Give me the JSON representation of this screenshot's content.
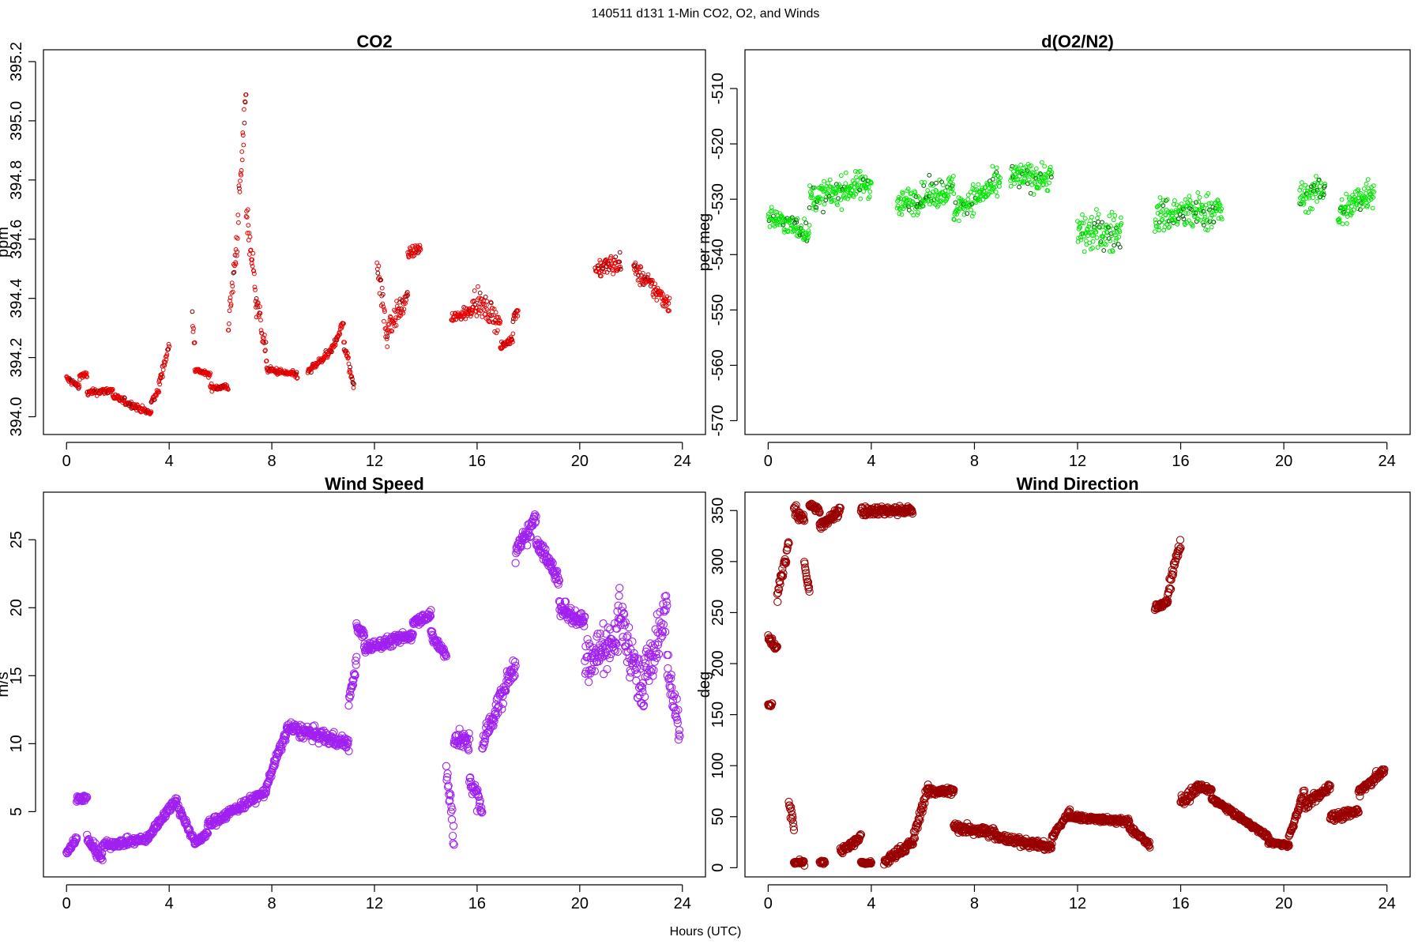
{
  "figure": {
    "title": "140511   d131   1-Min CO2, O2, and Winds",
    "xlabel": "Hours (UTC)"
  },
  "chart_data": [
    {
      "type": "scatter",
      "title": "CO2",
      "ylabel": "ppm",
      "xlim": [
        -0.9,
        24.9
      ],
      "ylim": [
        393.94,
        395.24
      ],
      "xticks": [
        0,
        4,
        8,
        12,
        16,
        20,
        24
      ],
      "yticks": [
        394.0,
        394.2,
        394.4,
        394.6,
        394.8,
        395.0,
        395.2
      ],
      "ytick_format": 1,
      "color": "#e60000",
      "highlight_color": "#7a0000",
      "marker_size": "small",
      "series_segments": [
        {
          "x0": 0.0,
          "x1": 0.5,
          "y0": 394.13,
          "y1": 394.1,
          "noise": 0.02
        },
        {
          "x0": 0.5,
          "x1": 0.8,
          "y0": 394.14,
          "y1": 394.14,
          "noise": 0.02
        },
        {
          "x0": 0.8,
          "x1": 1.8,
          "y0": 394.08,
          "y1": 394.09,
          "noise": 0.02
        },
        {
          "x0": 1.8,
          "x1": 3.3,
          "y0": 394.07,
          "y1": 394.01,
          "noise": 0.02
        },
        {
          "x0": 3.3,
          "x1": 3.6,
          "y0": 394.05,
          "y1": 394.09,
          "noise": 0.02
        },
        {
          "x0": 3.6,
          "x1": 4.0,
          "y0": 394.11,
          "y1": 394.24,
          "noise": 0.03
        },
        {
          "x0": 4.9,
          "x1": 5.0,
          "y0": 394.35,
          "y1": 394.25,
          "noise": 0.06
        },
        {
          "x0": 5.0,
          "x1": 5.6,
          "y0": 394.16,
          "y1": 394.14,
          "noise": 0.015
        },
        {
          "x0": 5.6,
          "x1": 6.3,
          "y0": 394.1,
          "y1": 394.1,
          "noise": 0.02
        },
        {
          "x0": 6.3,
          "x1": 6.6,
          "y0": 394.3,
          "y1": 394.55,
          "noise": 0.08
        },
        {
          "x0": 6.6,
          "x1": 7.0,
          "y0": 394.55,
          "y1": 395.1,
          "noise": 0.12
        },
        {
          "x0": 7.0,
          "x1": 7.4,
          "y0": 394.7,
          "y1": 394.4,
          "noise": 0.1
        },
        {
          "x0": 7.4,
          "x1": 7.8,
          "y0": 394.4,
          "y1": 394.2,
          "noise": 0.06
        },
        {
          "x0": 7.8,
          "x1": 9.0,
          "y0": 394.16,
          "y1": 394.14,
          "noise": 0.02
        },
        {
          "x0": 9.4,
          "x1": 10.3,
          "y0": 394.15,
          "y1": 394.22,
          "noise": 0.025
        },
        {
          "x0": 10.3,
          "x1": 10.8,
          "y0": 394.22,
          "y1": 394.32,
          "noise": 0.025
        },
        {
          "x0": 10.8,
          "x1": 11.2,
          "y0": 394.25,
          "y1": 394.1,
          "noise": 0.04
        },
        {
          "x0": 12.1,
          "x1": 12.5,
          "y0": 394.55,
          "y1": 394.25,
          "noise": 0.12
        },
        {
          "x0": 12.5,
          "x1": 13.3,
          "y0": 394.3,
          "y1": 394.4,
          "noise": 0.07
        },
        {
          "x0": 13.3,
          "x1": 13.8,
          "y0": 394.55,
          "y1": 394.57,
          "noise": 0.03
        },
        {
          "x0": 15.0,
          "x1": 15.8,
          "y0": 394.33,
          "y1": 394.36,
          "noise": 0.04
        },
        {
          "x0": 15.8,
          "x1": 16.9,
          "y0": 394.4,
          "y1": 394.32,
          "noise": 0.07
        },
        {
          "x0": 16.9,
          "x1": 17.4,
          "y0": 394.23,
          "y1": 394.27,
          "noise": 0.025
        },
        {
          "x0": 17.4,
          "x1": 17.6,
          "y0": 394.33,
          "y1": 394.36,
          "noise": 0.03
        },
        {
          "x0": 20.6,
          "x1": 21.6,
          "y0": 394.5,
          "y1": 394.52,
          "noise": 0.06
        },
        {
          "x0": 22.1,
          "x1": 23.5,
          "y0": 394.5,
          "y1": 394.38,
          "noise": 0.06
        }
      ]
    },
    {
      "type": "scatter",
      "title": "d(O2/N2)",
      "ylabel": "per meg",
      "xlim": [
        -0.9,
        24.9
      ],
      "ylim": [
        -572.5,
        -503
      ],
      "xticks": [
        0,
        4,
        8,
        12,
        16,
        20,
        24
      ],
      "yticks": [
        -570,
        -560,
        -550,
        -540,
        -530,
        -520,
        -510
      ],
      "ytick_format": 0,
      "color": "#00e600",
      "highlight_color": "#005500",
      "marker_size": "small",
      "series_segments": [
        {
          "x0": 0.0,
          "x1": 1.6,
          "y0": -533,
          "y1": -536,
          "noise": 3.5
        },
        {
          "x0": 1.6,
          "x1": 4.0,
          "y0": -530,
          "y1": -527,
          "noise": 4.5
        },
        {
          "x0": 5.0,
          "x1": 7.2,
          "y0": -531,
          "y1": -528,
          "noise": 4.5
        },
        {
          "x0": 7.2,
          "x1": 9.0,
          "y0": -532,
          "y1": -527,
          "noise": 4.5
        },
        {
          "x0": 9.4,
          "x1": 11.0,
          "y0": -526,
          "y1": -526,
          "noise": 4.5
        },
        {
          "x0": 12.0,
          "x1": 13.7,
          "y0": -536,
          "y1": -536,
          "noise": 6.5
        },
        {
          "x0": 15.0,
          "x1": 17.6,
          "y0": -533,
          "y1": -532,
          "noise": 6
        },
        {
          "x0": 20.6,
          "x1": 21.6,
          "y0": -530,
          "y1": -528,
          "noise": 4.5
        },
        {
          "x0": 22.1,
          "x1": 23.5,
          "y0": -533,
          "y1": -528,
          "noise": 5.5
        }
      ]
    },
    {
      "type": "scatter",
      "title": "Wind Speed",
      "ylabel": "m/s",
      "xlim": [
        -0.9,
        24.9
      ],
      "ylim": [
        0.2,
        28.5
      ],
      "xticks": [
        0,
        4,
        8,
        12,
        16,
        20,
        24
      ],
      "yticks": [
        5,
        10,
        15,
        20,
        25
      ],
      "ytick_format": 0,
      "color": "#a020f0",
      "highlight_color": "#a020f0",
      "marker_size": "large",
      "series_segments": [
        {
          "x0": 0.0,
          "x1": 0.4,
          "y0": 2.0,
          "y1": 3.0,
          "noise": 0.5
        },
        {
          "x0": 0.4,
          "x1": 0.8,
          "y0": 6.0,
          "y1": 6.0,
          "noise": 0.4
        },
        {
          "x0": 0.8,
          "x1": 1.4,
          "y0": 3.0,
          "y1": 1.5,
          "noise": 0.7
        },
        {
          "x0": 1.4,
          "x1": 3.2,
          "y0": 2.5,
          "y1": 3.0,
          "noise": 0.5
        },
        {
          "x0": 3.2,
          "x1": 4.3,
          "y0": 3.2,
          "y1": 6.0,
          "noise": 0.5
        },
        {
          "x0": 4.3,
          "x1": 5.0,
          "y0": 5.5,
          "y1": 2.8,
          "noise": 0.5
        },
        {
          "x0": 5.0,
          "x1": 5.5,
          "y0": 2.6,
          "y1": 3.5,
          "noise": 0.4
        },
        {
          "x0": 5.5,
          "x1": 7.8,
          "y0": 4.0,
          "y1": 6.5,
          "noise": 0.6
        },
        {
          "x0": 7.8,
          "x1": 8.6,
          "y0": 7.0,
          "y1": 11.0,
          "noise": 0.7
        },
        {
          "x0": 8.6,
          "x1": 11.0,
          "y0": 11.2,
          "y1": 10.0,
          "noise": 0.9
        },
        {
          "x0": 11.0,
          "x1": 11.3,
          "y0": 13.0,
          "y1": 16.0,
          "noise": 0.8
        },
        {
          "x0": 11.3,
          "x1": 11.6,
          "y0": 18.5,
          "y1": 18.0,
          "noise": 0.7
        },
        {
          "x0": 11.6,
          "x1": 13.5,
          "y0": 17.0,
          "y1": 18.0,
          "noise": 0.7
        },
        {
          "x0": 13.5,
          "x1": 14.2,
          "y0": 19.0,
          "y1": 19.5,
          "noise": 0.6
        },
        {
          "x0": 14.2,
          "x1": 14.8,
          "y0": 18.0,
          "y1": 16.5,
          "noise": 0.8
        },
        {
          "x0": 14.8,
          "x1": 15.1,
          "y0": 8.0,
          "y1": 3.0,
          "noise": 2.5
        },
        {
          "x0": 15.1,
          "x1": 15.7,
          "y0": 10.5,
          "y1": 10.0,
          "noise": 1.2
        },
        {
          "x0": 15.7,
          "x1": 16.2,
          "y0": 7.5,
          "y1": 5.0,
          "noise": 1.5
        },
        {
          "x0": 16.2,
          "x1": 17.5,
          "y0": 10.0,
          "y1": 16.0,
          "noise": 1.5
        },
        {
          "x0": 17.5,
          "x1": 18.3,
          "y0": 24.0,
          "y1": 26.5,
          "noise": 1.2
        },
        {
          "x0": 18.3,
          "x1": 19.2,
          "y0": 25.0,
          "y1": 22.0,
          "noise": 1.0
        },
        {
          "x0": 19.2,
          "x1": 20.2,
          "y0": 20.0,
          "y1": 19.0,
          "noise": 1.3
        },
        {
          "x0": 20.2,
          "x1": 21.5,
          "y0": 16.0,
          "y1": 18.0,
          "noise": 2.8
        },
        {
          "x0": 21.5,
          "x1": 22.5,
          "y0": 20.0,
          "y1": 13.0,
          "noise": 3.2
        },
        {
          "x0": 22.5,
          "x1": 23.4,
          "y0": 15.0,
          "y1": 20.0,
          "noise": 3.0
        },
        {
          "x0": 23.4,
          "x1": 23.9,
          "y0": 16.0,
          "y1": 11.0,
          "noise": 2.2
        }
      ]
    },
    {
      "type": "scatter",
      "title": "Wind Direction",
      "ylabel": "deg",
      "xlim": [
        -0.9,
        24.9
      ],
      "ylim": [
        -9,
        368
      ],
      "xticks": [
        0,
        4,
        8,
        12,
        16,
        20,
        24
      ],
      "yticks": [
        0,
        50,
        100,
        150,
        200,
        250,
        300,
        350
      ],
      "ytick_format": 0,
      "color": "#990000",
      "highlight_color": "#990000",
      "marker_size": "large",
      "series_segments": [
        {
          "x0": 0.0,
          "x1": 0.15,
          "y0": 160,
          "y1": 160,
          "noise": 4
        },
        {
          "x0": 0.0,
          "x1": 0.35,
          "y0": 225,
          "y1": 215,
          "noise": 7
        },
        {
          "x0": 0.35,
          "x1": 0.8,
          "y0": 265,
          "y1": 320,
          "noise": 12
        },
        {
          "x0": 0.8,
          "x1": 1.0,
          "y0": 65,
          "y1": 40,
          "noise": 10
        },
        {
          "x0": 1.0,
          "x1": 1.4,
          "y0": 350,
          "y1": 340,
          "noise": 12
        },
        {
          "x0": 1.0,
          "x1": 1.4,
          "y0": 5,
          "y1": 5,
          "noise": 4
        },
        {
          "x0": 1.4,
          "x1": 1.6,
          "y0": 300,
          "y1": 270,
          "noise": 12
        },
        {
          "x0": 1.6,
          "x1": 2.0,
          "y0": 355,
          "y1": 350,
          "noise": 5
        },
        {
          "x0": 2.0,
          "x1": 2.2,
          "y0": 5,
          "y1": 5,
          "noise": 3
        },
        {
          "x0": 2.0,
          "x1": 2.8,
          "y0": 335,
          "y1": 350,
          "noise": 8
        },
        {
          "x0": 2.8,
          "x1": 3.6,
          "y0": 15,
          "y1": 30,
          "noise": 10
        },
        {
          "x0": 3.6,
          "x1": 4.0,
          "y0": 5,
          "y1": 5,
          "noise": 3
        },
        {
          "x0": 3.6,
          "x1": 5.6,
          "y0": 350,
          "y1": 350,
          "noise": 8
        },
        {
          "x0": 4.5,
          "x1": 5.6,
          "y0": 5,
          "y1": 25,
          "noise": 8
        },
        {
          "x0": 5.6,
          "x1": 6.2,
          "y0": 25,
          "y1": 80,
          "noise": 10
        },
        {
          "x0": 6.2,
          "x1": 7.2,
          "y0": 75,
          "y1": 75,
          "noise": 7
        },
        {
          "x0": 7.2,
          "x1": 8.8,
          "y0": 40,
          "y1": 35,
          "noise": 9
        },
        {
          "x0": 8.8,
          "x1": 11.0,
          "y0": 30,
          "y1": 20,
          "noise": 7
        },
        {
          "x0": 11.0,
          "x1": 11.7,
          "y0": 30,
          "y1": 55,
          "noise": 5
        },
        {
          "x0": 11.7,
          "x1": 14.0,
          "y0": 50,
          "y1": 45,
          "noise": 5
        },
        {
          "x0": 14.0,
          "x1": 14.8,
          "y0": 40,
          "y1": 22,
          "noise": 6
        },
        {
          "x0": 15.0,
          "x1": 15.5,
          "y0": 255,
          "y1": 260,
          "noise": 5
        },
        {
          "x0": 15.5,
          "x1": 16.0,
          "y0": 270,
          "y1": 320,
          "noise": 12
        },
        {
          "x0": 16.0,
          "x1": 16.6,
          "y0": 65,
          "y1": 75,
          "noise": 10
        },
        {
          "x0": 16.6,
          "x1": 17.2,
          "y0": 80,
          "y1": 75,
          "noise": 7
        },
        {
          "x0": 17.2,
          "x1": 19.4,
          "y0": 68,
          "y1": 30,
          "noise": 4
        },
        {
          "x0": 19.4,
          "x1": 20.2,
          "y0": 25,
          "y1": 22,
          "noise": 3
        },
        {
          "x0": 20.2,
          "x1": 20.8,
          "y0": 30,
          "y1": 75,
          "noise": 6
        },
        {
          "x0": 20.8,
          "x1": 21.8,
          "y0": 60,
          "y1": 80,
          "noise": 8
        },
        {
          "x0": 21.8,
          "x1": 22.9,
          "y0": 50,
          "y1": 55,
          "noise": 8
        },
        {
          "x0": 22.9,
          "x1": 23.9,
          "y0": 75,
          "y1": 95,
          "noise": 8
        }
      ]
    }
  ]
}
